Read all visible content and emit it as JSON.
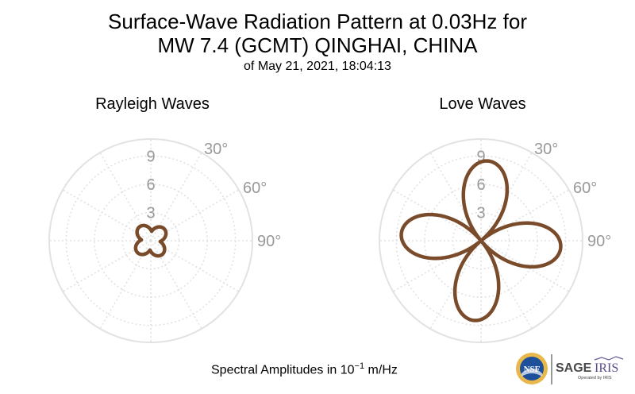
{
  "title": {
    "line1": "Surface-Wave Radiation Pattern at 0.03Hz for",
    "line2": "MW 7.4 (GCMT) QINGHAI, CHINA",
    "line3": "of May 21, 2021, 18:04:13"
  },
  "footer": {
    "prefix": "Spectral Amplitudes in 10",
    "exponent": "−1",
    "unit": " m/Hz"
  },
  "logos": {
    "nsf": "NSF",
    "sage": "SAGE",
    "iris": "IRIS",
    "operated": "Operated by IRIS"
  },
  "colors": {
    "pattern": "#7a4b2a",
    "grid": "#e2e2e2",
    "tick_label": "#999999"
  },
  "chart_data": [
    {
      "type": "polar",
      "title": "Rayleigh Waves",
      "radial_ticks": [
        "3",
        "6",
        "9"
      ],
      "radial_max": 10.8,
      "angle_tick_labels": [
        "30°",
        "60°",
        "90°"
      ],
      "series": [
        {
          "lobes": 4,
          "lobe_axis_deg": [
            -40,
            50,
            140,
            230
          ],
          "max_amplitude": 1.9,
          "min_amplitude": 1.0
        }
      ]
    },
    {
      "type": "polar",
      "title": "Love Waves",
      "radial_ticks": [
        "3",
        "6",
        "9"
      ],
      "radial_max": 10.8,
      "angle_tick_labels": [
        "30°",
        "60°",
        "90°"
      ],
      "series": [
        {
          "lobes": 4,
          "lobe_axis_deg": [
            5,
            95,
            185,
            275
          ],
          "max_amplitude": 8.5,
          "min_amplitude": 0
        }
      ]
    }
  ]
}
